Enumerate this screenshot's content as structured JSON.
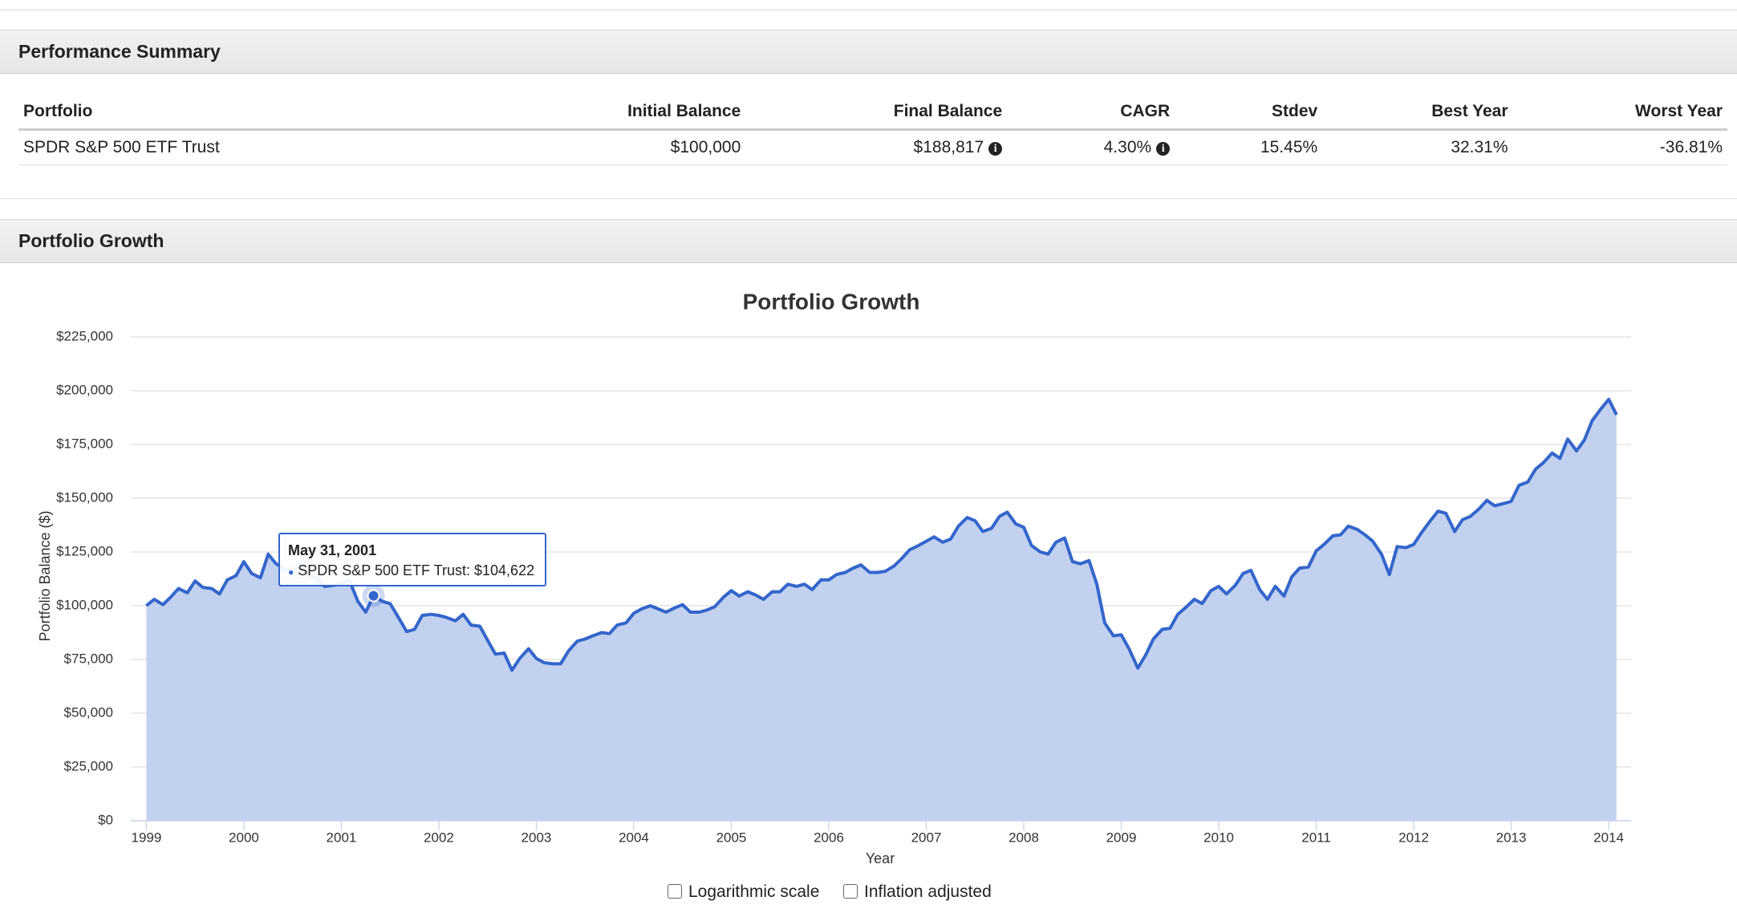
{
  "summary": {
    "title": "Performance Summary",
    "table": {
      "header": [
        "Portfolio",
        "Initial Balance",
        "Final Balance",
        "CAGR",
        "Stdev",
        "Best Year",
        "Worst Year"
      ],
      "rows": [
        [
          "SPDR S&P 500 ETF Trust",
          "$100,000",
          "$188,817",
          "4.30%",
          "15.45%",
          "32.31%",
          "-36.81%"
        ]
      ]
    }
  },
  "growth": {
    "title": "Portfolio Growth"
  },
  "controls": {
    "log": "Logarithmic scale",
    "inflation": "Inflation adjusted"
  },
  "tooltip": {
    "title": "May 31, 2001",
    "text": "SPDR S&P 500 ETF Trust: $104,622"
  },
  "chart_data": {
    "type": "area",
    "title": "Portfolio Growth",
    "x_label": "Year",
    "y_label": "Portfolio Balance ($)",
    "xlim": [
      1998.84,
      2014.23
    ],
    "xticks": [
      1999,
      2000,
      2001,
      2002,
      2003,
      2004,
      2005,
      2006,
      2007,
      2008,
      2009,
      2010,
      2011,
      2012,
      2013,
      2014
    ],
    "ylim": [
      0,
      225000
    ],
    "yticks": [
      {
        "value": 0,
        "label": "$0"
      },
      {
        "value": 25000,
        "label": "$25,000"
      },
      {
        "value": 50000,
        "label": "$50,000"
      },
      {
        "value": 75000,
        "label": "$75,000"
      },
      {
        "value": 100000,
        "label": "$100,000"
      },
      {
        "value": 125000,
        "label": "$125,000"
      },
      {
        "value": 150000,
        "label": "$150,000"
      },
      {
        "value": 175000,
        "label": "$175,000"
      },
      {
        "value": 200000,
        "label": "$200,000"
      },
      {
        "value": 225000,
        "label": "$225,000"
      }
    ],
    "grid": true,
    "x": [
      1999,
      1999.08,
      1999.17,
      1999.25,
      1999.33,
      1999.42,
      1999.5,
      1999.58,
      1999.67,
      1999.75,
      1999.83,
      1999.92,
      2000,
      2000.08,
      2000.17,
      2000.25,
      2000.33,
      2000.42,
      2000.5,
      2000.58,
      2000.67,
      2000.75,
      2000.83,
      2000.92,
      2001,
      2001.08,
      2001.17,
      2001.25,
      2001.33,
      2001.42,
      2001.5,
      2001.58,
      2001.67,
      2001.75,
      2001.83,
      2001.92,
      2002,
      2002.08,
      2002.17,
      2002.25,
      2002.33,
      2002.42,
      2002.5,
      2002.58,
      2002.67,
      2002.75,
      2002.83,
      2002.92,
      2003,
      2003.08,
      2003.17,
      2003.25,
      2003.33,
      2003.42,
      2003.5,
      2003.58,
      2003.67,
      2003.75,
      2003.83,
      2003.92,
      2004,
      2004.08,
      2004.17,
      2004.25,
      2004.33,
      2004.42,
      2004.5,
      2004.58,
      2004.67,
      2004.75,
      2004.83,
      2004.92,
      2005,
      2005.08,
      2005.17,
      2005.25,
      2005.33,
      2005.42,
      2005.5,
      2005.58,
      2005.67,
      2005.75,
      2005.83,
      2005.92,
      2006,
      2006.08,
      2006.17,
      2006.25,
      2006.33,
      2006.42,
      2006.5,
      2006.58,
      2006.67,
      2006.75,
      2006.83,
      2006.92,
      2007,
      2007.08,
      2007.17,
      2007.25,
      2007.33,
      2007.42,
      2007.5,
      2007.58,
      2007.67,
      2007.75,
      2007.83,
      2007.92,
      2008,
      2008.08,
      2008.17,
      2008.25,
      2008.33,
      2008.42,
      2008.5,
      2008.58,
      2008.67,
      2008.75,
      2008.83,
      2008.92,
      2009,
      2009.08,
      2009.17,
      2009.25,
      2009.33,
      2009.42,
      2009.5,
      2009.58,
      2009.67,
      2009.75,
      2009.83,
      2009.92,
      2010,
      2010.08,
      2010.17,
      2010.25,
      2010.33,
      2010.42,
      2010.5,
      2010.58,
      2010.67,
      2010.75,
      2010.83,
      2010.92,
      2011,
      2011.08,
      2011.17,
      2011.25,
      2011.33,
      2011.42,
      2011.5,
      2011.58,
      2011.67,
      2011.75,
      2011.83,
      2011.92,
      2012,
      2012.08,
      2012.17,
      2012.25,
      2012.33,
      2012.42,
      2012.5,
      2012.58,
      2012.67,
      2012.75,
      2012.83,
      2012.92,
      2013,
      2013.08,
      2013.17,
      2013.25,
      2013.33,
      2013.42,
      2013.5,
      2013.58,
      2013.67,
      2013.75,
      2013.83,
      2013.92,
      2014,
      2014.08
    ],
    "series": [
      {
        "name": "SPDR S&P 500 ETF Trust",
        "color": "#3366cc",
        "fill": "#c2d1ef",
        "values": [
          100000,
          103000,
          100500,
          104000,
          108000,
          106000,
          111500,
          108500,
          108000,
          105500,
          112000,
          114000,
          120500,
          115000,
          113000,
          124000,
          119500,
          117000,
          116000,
          120000,
          114000,
          113000,
          109000,
          109500,
          110000,
          112000,
          102000,
          97000,
          104622,
          102000,
          101000,
          95000,
          88000,
          89000,
          95500,
          96000,
          95500,
          94500,
          93000,
          96000,
          91000,
          90500,
          84000,
          77500,
          78000,
          70000,
          75500,
          80000,
          75500,
          73500,
          73000,
          73000,
          79000,
          83500,
          84500,
          86000,
          87500,
          87000,
          91000,
          92000,
          96500,
          98500,
          100000,
          98500,
          97000,
          99000,
          100500,
          97000,
          97000,
          98000,
          99500,
          104000,
          107000,
          104500,
          106500,
          105000,
          103000,
          106500,
          106500,
          110000,
          109000,
          110000,
          107500,
          112000,
          112000,
          114500,
          115500,
          117500,
          119000,
          115500,
          115500,
          116000,
          118500,
          122000,
          126000,
          128000,
          130000,
          132000,
          129500,
          131000,
          137000,
          141000,
          139500,
          134500,
          136000,
          141500,
          143500,
          138000,
          136500,
          128000,
          125000,
          124000,
          129500,
          131500,
          120500,
          119500,
          121000,
          110000,
          92000,
          86000,
          86500,
          80000,
          71000,
          77000,
          84500,
          89000,
          89500,
          96000,
          99500,
          103000,
          101000,
          107000,
          109000,
          105500,
          109500,
          115000,
          116500,
          107500,
          103000,
          109000,
          104500,
          113500,
          117500,
          118000,
          125500,
          128500,
          132500,
          133000,
          137000,
          135500,
          133000,
          130000,
          124000,
          114500,
          127500,
          127000,
          128500,
          134000,
          139500,
          144000,
          143000,
          134500,
          140000,
          141500,
          145000,
          149000,
          146500,
          147500,
          148500,
          156000,
          157500,
          163500,
          166500,
          171000,
          168500,
          177500,
          172000,
          177000,
          186000,
          191500,
          196000,
          188817
        ]
      }
    ]
  }
}
